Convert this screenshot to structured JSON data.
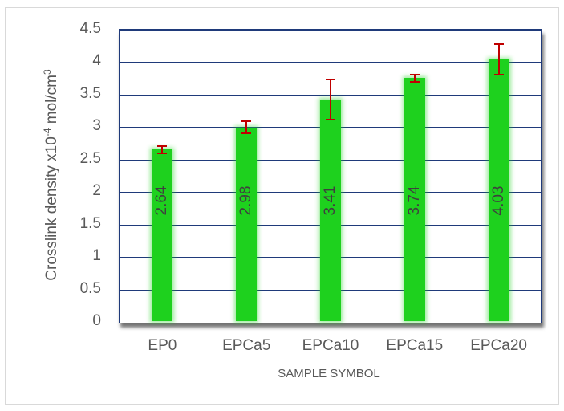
{
  "chart_data": {
    "type": "bar",
    "title": "",
    "xlabel": "SAMPLE SYMBOL",
    "ylabel": "Crosslink density x10",
    "ylabel_exponent": "-4",
    "ylabel_unit": " mol/cm",
    "ylabel_unit_exponent": "3",
    "categories": [
      "EP0",
      "EPCa5",
      "EPCa10",
      "EPCa15",
      "EPCa20"
    ],
    "values": [
      2.64,
      2.98,
      3.41,
      3.74,
      4.03
    ],
    "value_labels": [
      "2.64",
      "2.98",
      "3.41",
      "3.74",
      "4.03"
    ],
    "error_low": [
      2.58,
      2.89,
      3.1,
      3.68,
      3.79
    ],
    "error_high": [
      2.7,
      3.08,
      3.72,
      3.79,
      4.27
    ],
    "ylim": [
      0,
      4.5
    ],
    "yticks": [
      "0",
      "0.5",
      "1",
      "1.5",
      "2",
      "2.5",
      "3",
      "3.5",
      "4",
      "4.5"
    ],
    "grid": true,
    "legend": null,
    "colors": {
      "bar": "#1ed11e",
      "error_bar": "#c00000",
      "grid": "#1f3a7a"
    }
  }
}
